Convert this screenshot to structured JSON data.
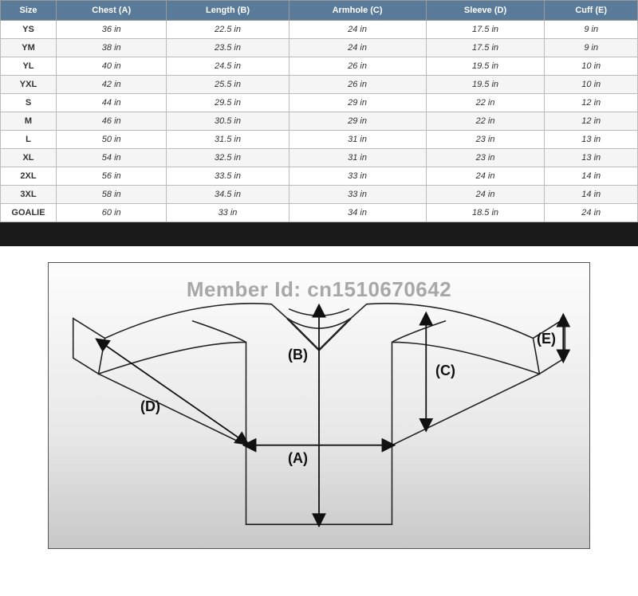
{
  "table": {
    "columns": [
      "Size",
      "Chest (A)",
      "Length (B)",
      "Armhole (C)",
      "Sleeve (D)",
      "Cuff (E)"
    ],
    "rows": [
      [
        "YS",
        "36 in",
        "22.5 in",
        "24 in",
        "17.5 in",
        "9 in"
      ],
      [
        "YM",
        "38 in",
        "23.5 in",
        "24 in",
        "17.5 in",
        "9 in"
      ],
      [
        "YL",
        "40 in",
        "24.5 in",
        "26 in",
        "19.5 in",
        "10 in"
      ],
      [
        "YXL",
        "42 in",
        "25.5 in",
        "26 in",
        "19.5 in",
        "10 in"
      ],
      [
        "S",
        "44 in",
        "29.5 in",
        "29 in",
        "22 in",
        "12 in"
      ],
      [
        "M",
        "46 in",
        "30.5 in",
        "29 in",
        "22 in",
        "12 in"
      ],
      [
        "L",
        "50 in",
        "31.5 in",
        "31 in",
        "23 in",
        "13 in"
      ],
      [
        "XL",
        "54 in",
        "32.5 in",
        "31 in",
        "23 in",
        "13 in"
      ],
      [
        "2XL",
        "56 in",
        "33.5 in",
        "33 in",
        "24 in",
        "14 in"
      ],
      [
        "3XL",
        "58 in",
        "34.5 in",
        "33 in",
        "24 in",
        "14 in"
      ],
      [
        "GOALIE",
        "60 in",
        "33 in",
        "34 in",
        "18.5 in",
        "24 in"
      ]
    ],
    "header_bg": "#5a7a9a",
    "header_text": "#ffffff",
    "border_color": "#bbbbbb",
    "row_alt_bg": "#f5f5f5",
    "font_size": 11
  },
  "watermark": "Member Id: cn1510670642",
  "diagram": {
    "labels": {
      "A": "(A)",
      "B": "(B)",
      "C": "(C)",
      "D": "(D)",
      "E": "(E)"
    },
    "stroke": "#222222",
    "bg_gradient_top": "#fdfdfd",
    "bg_gradient_bottom": "#c8c8c8",
    "border_color": "#555555",
    "label_fontsize": 18
  },
  "spacer_bg": "#1a1a1a"
}
